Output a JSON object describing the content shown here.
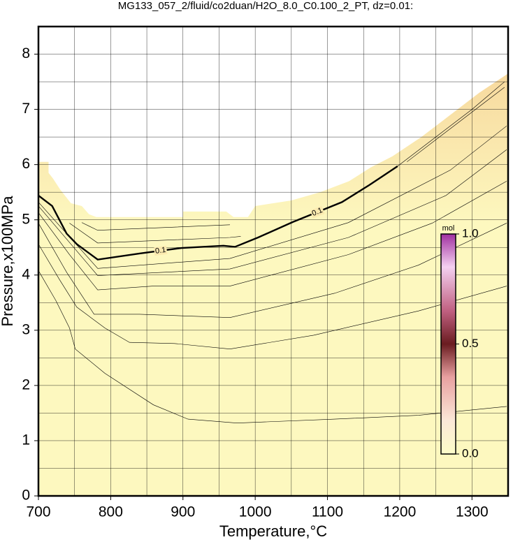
{
  "chart_data": {
    "type": "contour",
    "title": "MG133_057_2/fluid/co2duan/H2O_8.0_C0.100_2_PT, dz=0.01:",
    "x_label": "Temperature,°C",
    "y_label": "Pressure,x100MPa",
    "xlim": [
      700,
      1350
    ],
    "ylim": [
      0,
      8.5
    ],
    "xticks": [
      700,
      800,
      900,
      1000,
      1100,
      1200,
      1300
    ],
    "yticks": [
      0,
      1,
      2,
      3,
      4,
      5,
      6,
      7,
      8
    ],
    "xminorticks": [
      750,
      850,
      950,
      1050,
      1150,
      1250,
      1350
    ],
    "yminorticks": [
      0.5,
      1.5,
      2.5,
      3.5,
      4.5,
      5.5,
      6.5,
      7.5
    ],
    "grid": true,
    "domain": {
      "x": [
        700,
        714,
        714,
        720,
        730,
        745,
        760,
        770,
        780,
        900,
        900,
        960,
        970,
        990,
        1000,
        1050,
        1090,
        1130,
        1160,
        1190,
        1230,
        1270,
        1310,
        1350
      ],
      "y": [
        6.05,
        6.05,
        5.85,
        5.75,
        5.55,
        5.3,
        5.25,
        5.1,
        5.05,
        5.05,
        5.15,
        5.15,
        5.05,
        5.05,
        5.25,
        5.35,
        5.5,
        5.7,
        5.95,
        6.15,
        6.5,
        6.9,
        7.3,
        7.65
      ],
      "color_top": "#f7d99e",
      "color_bottom": "#fdf8bf"
    },
    "contours": [
      {
        "x": [
          700,
          724,
          743,
          751,
          792,
          859,
          907,
          975,
          1110,
          1226,
          1348
        ],
        "y": [
          4.08,
          3.54,
          3.04,
          2.66,
          2.22,
          1.65,
          1.39,
          1.32,
          1.39,
          1.46,
          1.62
        ]
      },
      {
        "x": [
          700,
          729,
          753,
          792,
          826,
          888,
          965,
          1081,
          1226,
          1348
        ],
        "y": [
          4.56,
          3.92,
          3.42,
          3.04,
          2.78,
          2.76,
          2.66,
          2.91,
          3.35,
          3.8
        ]
      },
      {
        "x": [
          700,
          739,
          777,
          840,
          965,
          1110,
          1226,
          1348
        ],
        "y": [
          4.94,
          4.05,
          3.29,
          3.29,
          3.23,
          3.67,
          4.18,
          4.94
        ]
      },
      {
        "x": [
          700,
          743,
          782,
          859,
          965,
          1129,
          1245,
          1348
        ],
        "y": [
          5.13,
          4.37,
          3.73,
          3.8,
          3.8,
          4.37,
          4.94,
          5.7
        ]
      },
      {
        "x": [
          700,
          782,
          965,
          1129,
          1264,
          1348
        ],
        "y": [
          5.25,
          3.99,
          4.11,
          4.68,
          5.44,
          6.27
        ]
      },
      {
        "x": [
          700,
          782,
          965,
          1129,
          1270,
          1348
        ],
        "y": [
          5.32,
          4.12,
          4.3,
          4.95,
          5.9,
          6.7
        ]
      },
      {
        "x": [
          700,
          719,
          739,
          753,
          782,
          840,
          898,
          956,
          972,
          1004,
          1052,
          1120,
          1158,
          1197
        ],
        "y": [
          5.44,
          5.25,
          4.75,
          4.56,
          4.28,
          4.39,
          4.49,
          4.53,
          4.51,
          4.68,
          4.96,
          5.32,
          5.63,
          5.97
        ],
        "level": 0.1,
        "label": "0.1"
      },
      {
        "x": [
          743,
          782,
          965,
          980
        ],
        "y": [
          4.94,
          4.58,
          4.68,
          4.7
        ]
      },
      {
        "x": [
          760,
          782,
          965
        ],
        "y": [
          4.95,
          4.81,
          4.91
        ]
      },
      {
        "x": [
          1197,
          1250,
          1300,
          1345
        ],
        "y": [
          5.97,
          6.5,
          7.0,
          7.5
        ]
      },
      {
        "x": [
          1210,
          1260,
          1310,
          1345
        ],
        "y": [
          6.05,
          6.55,
          7.05,
          7.4
        ]
      }
    ],
    "colorbar": {
      "label": "mol",
      "clim": [
        0,
        1
      ],
      "ticks": [
        {
          "value": 0,
          "label": "0.0"
        },
        {
          "value": 0.5,
          "label": "0.5"
        },
        {
          "value": 1,
          "label": "1.0"
        }
      ]
    }
  }
}
